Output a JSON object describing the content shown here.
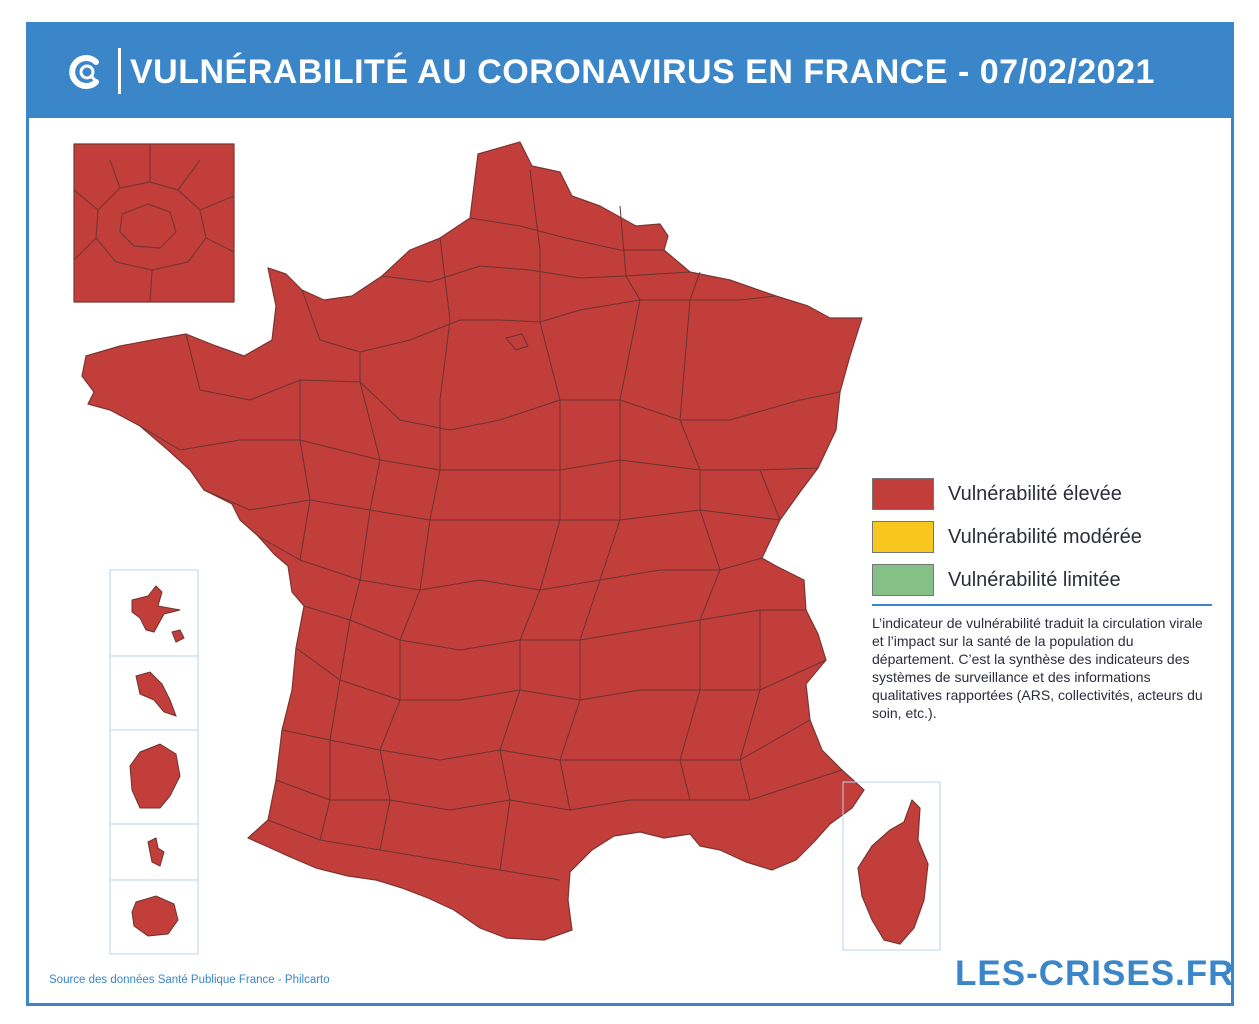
{
  "header": {
    "title": "VULNÉRABILITÉ AU CORONAVIRUS EN FRANCE - 07/02/2021",
    "logo_icon": "les-crises-c-logo-icon"
  },
  "colors": {
    "frame": "#3a86c8",
    "high": "#c13e3b",
    "moderate": "#f8c61e",
    "limited": "#85c187",
    "borders": "#6b3330",
    "text": "#2b2d3a"
  },
  "map": {
    "region": "France métropolitaine, Île-de-France, outre-mer, Corse",
    "all_departments_level": "Vulnérabilité élevée"
  },
  "legend": {
    "items": [
      {
        "label": "Vulnérabilité élevée",
        "color": "#c13e3b"
      },
      {
        "label": "Vulnérabilité modérée",
        "color": "#f8c61e"
      },
      {
        "label": "Vulnérabilité limitée",
        "color": "#85c187"
      }
    ],
    "note": "L’indicateur de vulnérabilité traduit la circulation virale et l’impact sur la santé de la population du département. C’est la synthèse des indicateurs des systèmes de surveillance et des informations qualitatives rapportées (ARS, collectivités, acteurs du soin, etc.)."
  },
  "footer": {
    "source": "Source des données Santé Publique France - Philcarto",
    "brand": "LES-CRISES.FR"
  }
}
